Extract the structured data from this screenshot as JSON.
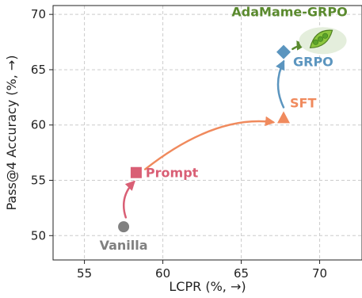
{
  "chart_data": {
    "type": "scatter",
    "xlabel": "LCPR (%, →)",
    "ylabel": "Pass@4 Accuracy (%, →)",
    "xlim": [
      53,
      72.7
    ],
    "ylim": [
      47.8,
      70.8
    ],
    "xticks": [
      55,
      60,
      65,
      70
    ],
    "yticks": [
      50,
      55,
      60,
      65,
      70
    ],
    "grid": true,
    "points": [
      {
        "label": "Vanilla",
        "x": 57.5,
        "y": 50.8,
        "marker": "circle",
        "color": "#808080"
      },
      {
        "label": "Prompt",
        "x": 58.3,
        "y": 55.7,
        "marker": "square",
        "color": "#d95f75"
      },
      {
        "label": "SFT",
        "x": 67.7,
        "y": 60.6,
        "marker": "triangle",
        "color": "#f08a5d"
      },
      {
        "label": "GRPO",
        "x": 67.7,
        "y": 66.6,
        "marker": "diamond",
        "color": "#5b95bf"
      },
      {
        "label": "AdaMame-GRPO",
        "x": 70,
        "y": 67.7,
        "marker": "pea-pod-icon",
        "color": "#5a8a2e"
      }
    ],
    "arrows": [
      {
        "from": "Vanilla",
        "to": "Prompt",
        "color": "#d95f75"
      },
      {
        "from": "Prompt",
        "to": "SFT",
        "color": "#f08a5d"
      },
      {
        "from": "SFT",
        "to": "GRPO",
        "color": "#5b95bf"
      },
      {
        "from": "GRPO",
        "to": "AdaMame-GRPO",
        "color": "#5a8a2e"
      }
    ]
  }
}
